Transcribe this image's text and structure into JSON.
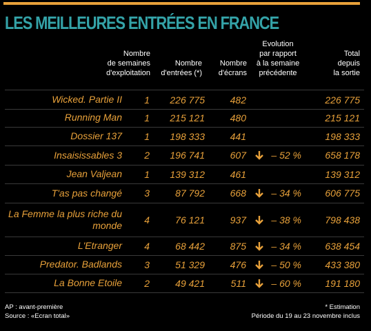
{
  "title": "LES MEILLEURES ENTRÉES EN FRANCE",
  "headers": {
    "weeks": "Nombre\nde semaines\nd'exploitation",
    "entries": "Nombre\nd'entrées (*)",
    "screens": "Nombre\nd'écrans",
    "evolution": "Evolution\npar rapport\nà la semaine\nprécédente",
    "total": "Total\ndepuis\nla sortie"
  },
  "rows": [
    {
      "title": "Wicked. Partie II",
      "weeks": "1",
      "entries": "226 775",
      "screens": "482",
      "evolution": "",
      "total": "226 775"
    },
    {
      "title": "Running Man",
      "weeks": "1",
      "entries": "215 121",
      "screens": "480",
      "evolution": "",
      "total": "215 121"
    },
    {
      "title": "Dossier 137",
      "weeks": "1",
      "entries": "198 333",
      "screens": "441",
      "evolution": "",
      "total": "198 333"
    },
    {
      "title": "Insaisissables 3",
      "weeks": "2",
      "entries": "196 741",
      "screens": "607",
      "evolution": "– 52 %",
      "total": "658 178"
    },
    {
      "title": "Jean Valjean",
      "weeks": "1",
      "entries": "139 312",
      "screens": "461",
      "evolution": "",
      "total": "139 312"
    },
    {
      "title": "T'as pas changé",
      "weeks": "3",
      "entries": "87 792",
      "screens": "668",
      "evolution": "– 34 %",
      "total": "606 775"
    },
    {
      "title": "La Femme la plus riche du monde",
      "weeks": "4",
      "entries": "76 121",
      "screens": "937",
      "evolution": "– 38 %",
      "total": "798 438"
    },
    {
      "title": "L'Etranger",
      "weeks": "4",
      "entries": "68 442",
      "screens": "875",
      "evolution": "– 34 %",
      "total": "638 454"
    },
    {
      "title": "Predator. Badlands",
      "weeks": "3",
      "entries": "51 329",
      "screens": "476",
      "evolution": "– 50 %",
      "total": "433 380"
    },
    {
      "title": "La Bonne Etoile",
      "weeks": "2",
      "entries": "49 421",
      "screens": "511",
      "evolution": "– 60 %",
      "total": "191 180"
    }
  ],
  "footer": {
    "note1": "AP : avant-première",
    "source": "Source : «Ecran total»",
    "estimation": "* Estimation",
    "period": "Période du 19 au 23 novembre inclus"
  },
  "colors": {
    "accent": "#e8a13a",
    "title": "#34a3a8",
    "background": "#000000"
  },
  "icons": {
    "decrease": "arrow-down-icon"
  }
}
